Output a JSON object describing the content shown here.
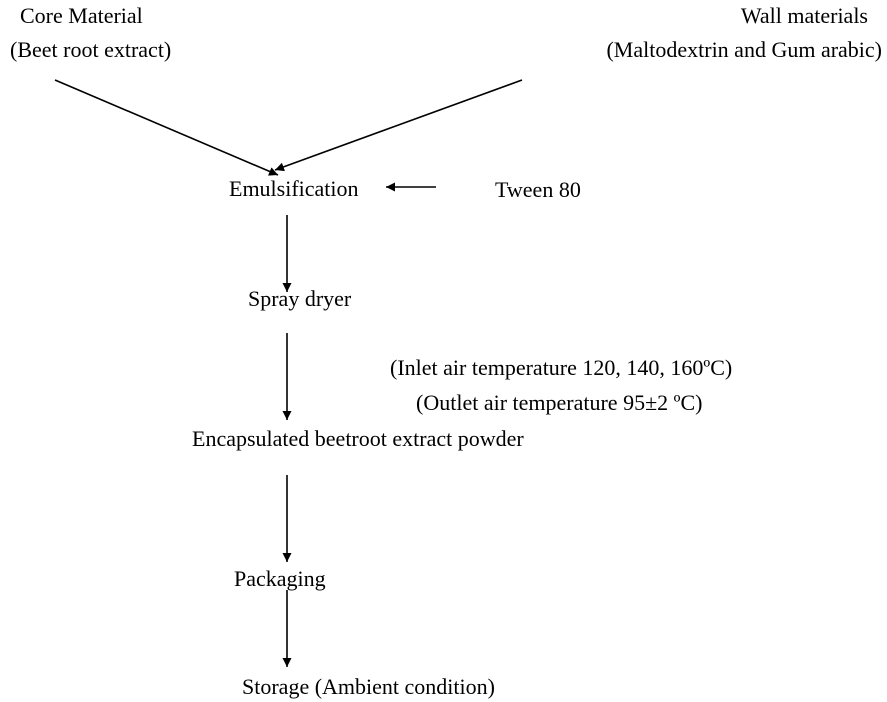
{
  "nodes": [
    {
      "label": "Core Material",
      "sublabel": "(Beet root extract)"
    },
    {
      "label": "Wall materials",
      "sublabel": "(Maltodextrin and Gum arabic)"
    },
    {
      "label": "Emulsification"
    },
    {
      "label": "Tween 80"
    },
    {
      "label": "Spray dryer"
    },
    {
      "label": "Encapsulated beetroot extract powder"
    },
    {
      "label": "Packaging"
    },
    {
      "label": "Storage (Ambient condition)"
    }
  ],
  "notes": [
    "(Inlet air temperature 120, 140, 160ºC)",
    "(Outlet air temperature 95±2 ºC)"
  ]
}
